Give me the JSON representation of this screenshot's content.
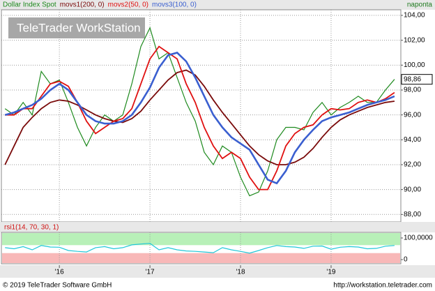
{
  "chart_data": [
    {
      "type": "line",
      "period": "naponta",
      "watermark": "TeleTrader WorkStation",
      "x": [
        2015.4,
        2015.5,
        2015.6,
        2015.7,
        2015.8,
        2015.9,
        2016.0,
        2016.1,
        2016.2,
        2016.3,
        2016.4,
        2016.5,
        2016.6,
        2016.7,
        2016.8,
        2016.9,
        2017.0,
        2017.1,
        2017.2,
        2017.3,
        2017.4,
        2017.5,
        2017.6,
        2017.7,
        2017.8,
        2017.9,
        2018.0,
        2018.1,
        2018.2,
        2018.3,
        2018.4,
        2018.5,
        2018.6,
        2018.7,
        2018.8,
        2018.9,
        2019.0,
        2019.1,
        2019.2,
        2019.3,
        2019.4,
        2019.5,
        2019.6,
        2019.7
      ],
      "series": [
        {
          "name": "Dollar Index Spot",
          "color": "#1e8a1e",
          "values": [
            96.5,
            96,
            97,
            96,
            99.5,
            98.5,
            98.8,
            97,
            95,
            93.5,
            95,
            96,
            95.5,
            96,
            98.5,
            101.5,
            103,
            100.5,
            101,
            99,
            97,
            95.5,
            93,
            92,
            93.5,
            93,
            91,
            89.5,
            89.8,
            91.5,
            94,
            95,
            95,
            94.8,
            96.2,
            97,
            96,
            96.6,
            97,
            97.5,
            97,
            97,
            98,
            98.86
          ]
        },
        {
          "name": "movs1(200, 0)",
          "color": "#7a0a0a",
          "values": [
            92,
            93.5,
            95,
            95.8,
            96.5,
            97,
            97.2,
            97.1,
            96.8,
            96.4,
            96,
            95.7,
            95.5,
            95.4,
            95.7,
            96.3,
            97.2,
            98,
            98.8,
            99.4,
            99.6,
            99.2,
            98.3,
            97.2,
            96.2,
            95.3,
            94.4,
            93.5,
            92.8,
            92.3,
            92,
            92,
            92.2,
            92.6,
            93.3,
            94.2,
            95,
            95.6,
            96,
            96.3,
            96.6,
            96.8,
            97,
            97.1
          ]
        },
        {
          "name": "movs2(50, 0)",
          "color": "#e01010",
          "values": [
            96,
            96,
            96.5,
            96.5,
            97.5,
            98.5,
            98.7,
            98.3,
            97,
            95.5,
            94.5,
            95,
            95.5,
            95.7,
            96.5,
            98.5,
            100.5,
            101.5,
            101,
            100.5,
            98.5,
            97,
            95,
            93.5,
            92.5,
            93,
            92.5,
            91,
            90,
            90,
            91.5,
            93.5,
            94.5,
            95,
            95.2,
            96,
            96.5,
            96.4,
            96.5,
            97,
            97.2,
            97,
            97.3,
            97.8
          ]
        },
        {
          "name": "movs3(100, 0)",
          "color": "#3a5fd0",
          "values": [
            96,
            96.2,
            96.5,
            96.8,
            97.3,
            98,
            98.5,
            98,
            97,
            96,
            95.5,
            95.3,
            95.3,
            95.5,
            96,
            97,
            98.2,
            99.8,
            100.8,
            101,
            100.3,
            99,
            97.5,
            96,
            95,
            94.2,
            93.7,
            93.2,
            92,
            90.8,
            90.5,
            91.5,
            93,
            94,
            94.8,
            95.5,
            95.8,
            96,
            96.2,
            96.5,
            96.8,
            97,
            97.2,
            97.5
          ]
        }
      ],
      "last_value": {
        "value": 98.86,
        "label": "98,86"
      },
      "xlim": [
        2015.36,
        2019.77
      ],
      "xticks": [
        {
          "value": 2016,
          "label": "'16"
        },
        {
          "value": 2017,
          "label": "'17"
        },
        {
          "value": 2018,
          "label": "'18"
        },
        {
          "value": 2019,
          "label": "'19"
        }
      ],
      "ylim": [
        87.4,
        104.45
      ],
      "yticks": [
        {
          "value": 88,
          "label": "88,00"
        },
        {
          "value": 90,
          "label": "90,00"
        },
        {
          "value": 92,
          "label": "92,00"
        },
        {
          "value": 94,
          "label": "94,00"
        },
        {
          "value": 96,
          "label": "96,00"
        },
        {
          "value": 98,
          "label": "98,00"
        },
        {
          "value": 100,
          "label": "100,00"
        },
        {
          "value": 102,
          "label": "102,00"
        },
        {
          "value": 104,
          "label": "104,00"
        }
      ],
      "grid": true
    },
    {
      "type": "line",
      "title": "rsi1(14, 70, 30, 1)",
      "title_color": "#d01010",
      "upper_band": 70,
      "lower_band": 30,
      "series": [
        {
          "name": "rsi1",
          "color": "#20c8d8",
          "values": [
            55,
            50,
            60,
            45,
            65,
            58,
            57,
            42,
            38,
            35,
            55,
            60,
            50,
            55,
            68,
            72,
            75,
            45,
            55,
            45,
            40,
            38,
            35,
            32,
            55,
            45,
            38,
            30,
            42,
            55,
            65,
            60,
            58,
            52,
            62,
            63,
            48,
            57,
            60,
            58,
            50,
            52,
            62,
            65
          ]
        }
      ],
      "ylim": [
        -19.4,
        125.8
      ],
      "yticks": [
        {
          "value": 100,
          "label": "100,0000"
        },
        0
      ]
    }
  ],
  "footer": {
    "left": "© 2019 TeleTrader Software GmbH",
    "right": "http://workstation.teletrader.com"
  }
}
